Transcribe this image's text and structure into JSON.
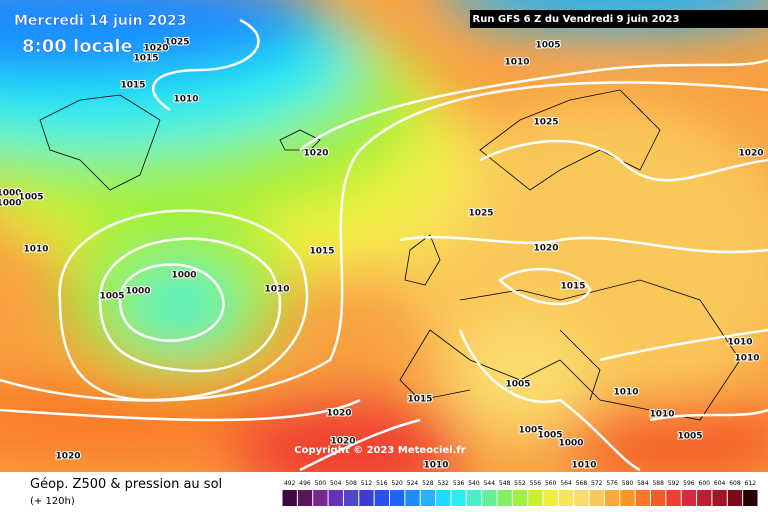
{
  "header": {
    "date": "Mercredi 14 juin 2023",
    "time": "8:00 locale",
    "run": "Run GFS 6 Z du Vendredi 9 juin 2023"
  },
  "isobar_labels": [
    "1025",
    "1020",
    "1015",
    "1015",
    "1010",
    "1005",
    "1010",
    "1025",
    "1020",
    "1020",
    "1000",
    "1005",
    "1010",
    "1000",
    "1005",
    "1000",
    "1015",
    "1010",
    "1025",
    "1020",
    "1015",
    "1010",
    "1010",
    "1005",
    "1010",
    "1015",
    "1020",
    "1005",
    "1005",
    "1000",
    "1010",
    "1010",
    "1005",
    "1020",
    "1020",
    "1010",
    "1000"
  ],
  "copyright": "Copyright © 2023 Meteociel.fr",
  "footer": {
    "title": "Géop. Z500 & pression au sol",
    "lead": "(+ 120h)"
  },
  "legend": {
    "values": [
      492,
      496,
      500,
      504,
      508,
      512,
      516,
      520,
      524,
      528,
      532,
      536,
      540,
      544,
      548,
      552,
      556,
      560,
      564,
      568,
      572,
      576,
      580,
      584,
      588,
      592,
      596,
      600,
      604,
      608,
      612
    ],
    "colors": [
      "#3c0a3c",
      "#5a145a",
      "#78288c",
      "#6432b4",
      "#5046c8",
      "#3c3cdc",
      "#2850f0",
      "#1e64ff",
      "#1e8cff",
      "#1eb4ff",
      "#1edcff",
      "#28f0f0",
      "#46f0c8",
      "#64f096",
      "#82f064",
      "#a0f03c",
      "#c8f028",
      "#f0f03c",
      "#f8e65a",
      "#fadc6e",
      "#fac85a",
      "#faaa3c",
      "#fa9628",
      "#fa7828",
      "#f55a28",
      "#f03c32",
      "#dc283c",
      "#be1e32",
      "#a01428",
      "#780a1e",
      "#280000"
    ]
  }
}
